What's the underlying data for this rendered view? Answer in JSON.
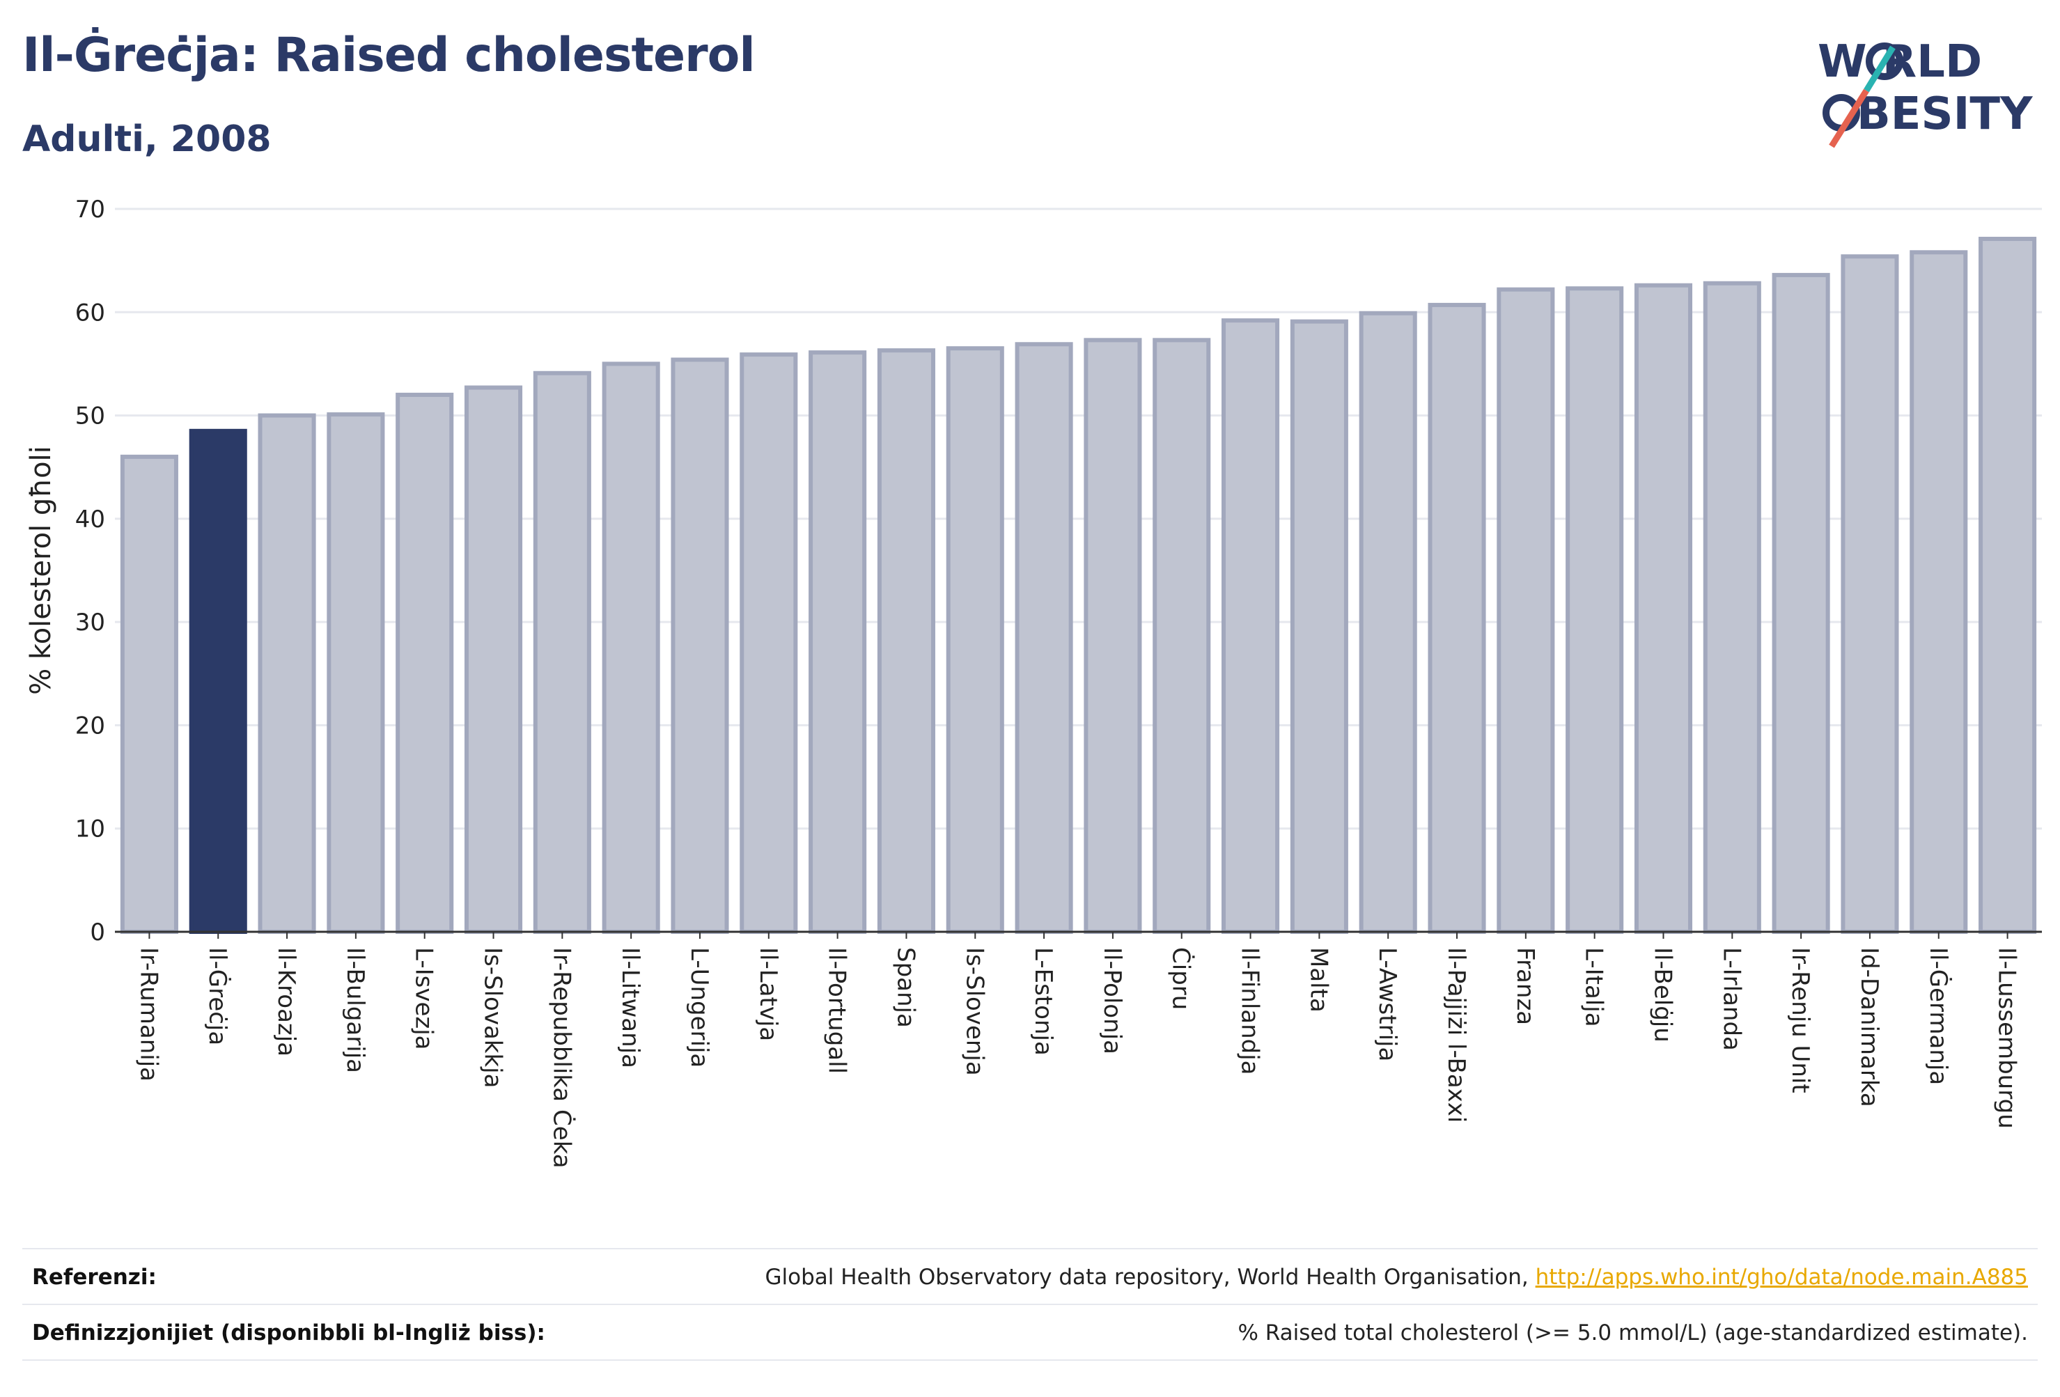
{
  "header": {
    "title": "Il-Ġreċja: Raised cholesterol",
    "subtitle": "Adulti, 2008"
  },
  "logo": {
    "line1": "W   RLD",
    "line2": "BESITY",
    "brand_color": "#2b3a67",
    "accent_teal": "#2ab3b1",
    "accent_red": "#e5624f"
  },
  "chart_data": {
    "type": "bar",
    "ylabel": "% kolesterol għoli",
    "ylim": [
      0,
      70
    ],
    "yticks": [
      0,
      10,
      20,
      30,
      40,
      50,
      60,
      70
    ],
    "grid": true,
    "highlight_color": "#2b3a67",
    "bar_color": "#c0c4d1",
    "bar_edge_color": "#a2a8bd",
    "highlight_category": "Il-Ġreċja",
    "categories": [
      "Ir-Rumanija",
      "Il-Ġreċja",
      "Il-Kroazja",
      "Il-Bulgarija",
      "L-Isvezja",
      "Is-Slovakkja",
      "Ir-Repubblika Ċeka",
      "Il-Litwanja",
      "L-Ungerija",
      "Il-Latvja",
      "Il-Portugall",
      "Spanja",
      "Is-Slovenja",
      "L-Estonja",
      "Il-Polonja",
      "Ċipru",
      "Il-Finlandja",
      "Malta",
      "L-Awstrija",
      "Il-Pajjiżi l-Baxxi",
      "Franza",
      "L-Italja",
      "Il-Belġju",
      "L-Irlanda",
      "Ir-Renju Unit",
      "Id-Danimarka",
      "Il-Ġermanja",
      "Il-Lussemburgu"
    ],
    "values": [
      46.0,
      48.5,
      50.0,
      50.1,
      52.0,
      52.7,
      54.1,
      55.0,
      55.4,
      55.9,
      56.1,
      56.3,
      56.5,
      56.9,
      57.3,
      57.3,
      59.2,
      59.1,
      59.9,
      60.7,
      62.2,
      62.3,
      62.6,
      62.8,
      63.6,
      65.4,
      65.8,
      67.1
    ]
  },
  "footer": {
    "references_label": "Referenzi:",
    "references_text": "Global Health Observatory data repository, World Health Organisation, ",
    "references_link": "http://apps.who.int/gho/data/node.main.A885",
    "definitions_label": "Definizzjonijiet (disponibbli bl-Ingliż biss):",
    "definitions_text": "% Raised total cholesterol (>= 5.0 mmol/L) (age-standardized estimate)."
  }
}
